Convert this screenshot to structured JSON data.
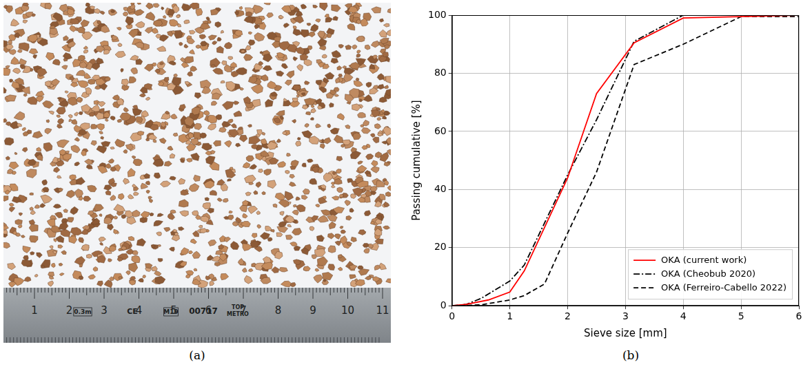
{
  "panel_labels": [
    "(a)",
    "(b)"
  ],
  "photo": {
    "ruler_numbers": [
      1,
      2,
      3,
      4,
      5,
      6,
      7,
      8,
      9,
      10,
      11
    ],
    "ruler_marks": [
      "0.3m",
      "CE",
      "M19",
      "00717",
      "TOP",
      "METRO"
    ]
  },
  "chart_data": {
    "type": "line",
    "x_label": "Sieve size [mm]",
    "y_label": "Passing cumulative [%]",
    "xlim": [
      0,
      6
    ],
    "xticks": [
      0,
      1,
      2,
      3,
      4,
      5,
      6
    ],
    "ylim": [
      0,
      100
    ],
    "yticks": [
      0,
      20,
      40,
      60,
      80,
      100
    ],
    "grid": true,
    "legend": "lower right",
    "series": [
      {
        "name": "OKA (current work)",
        "color": "#ff0000",
        "line_style": "solid",
        "x": [
          0,
          0.25,
          0.63,
          1,
          1.25,
          2,
          2.5,
          3.15,
          4,
          5,
          6
        ],
        "values": [
          0,
          0.5,
          2,
          4.7,
          12,
          44,
          73,
          90.5,
          99,
          99.5,
          100
        ]
      },
      {
        "name": "OKA (Cheobub 2020)",
        "color": "#000000",
        "line_style": "dashdot",
        "x": [
          0,
          0.25,
          0.5,
          1,
          1.25,
          2,
          2.5,
          3.15,
          4,
          5,
          6
        ],
        "values": [
          0,
          0.5,
          2.5,
          8.5,
          14,
          45,
          64,
          91,
          100,
          100,
          100
        ]
      },
      {
        "name": "OKA (Ferreiro-Cabello 2022)",
        "color": "#000000",
        "line_style": "dashed",
        "x": [
          0,
          0.5,
          1,
          1.25,
          1.6,
          2,
          2.5,
          3.15,
          4,
          5,
          6
        ],
        "values": [
          0,
          0.3,
          2,
          3.5,
          7.5,
          25,
          46,
          83,
          90,
          99.5,
          99.5
        ]
      }
    ]
  }
}
